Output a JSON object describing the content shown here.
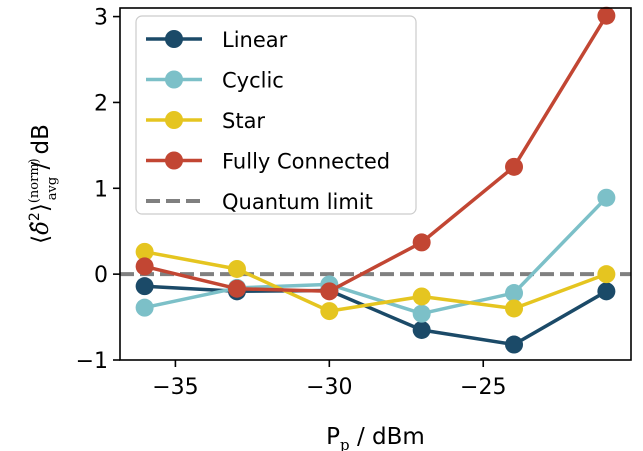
{
  "chart_data": {
    "type": "line",
    "xlabel": "P_p / dBm",
    "ylabel": "⟨δ̂²⟩avg(norm) / dB",
    "xlim": [
      -36.8,
      -20.2
    ],
    "ylim": [
      -1.0,
      3.1
    ],
    "xticks": [
      -35,
      -30,
      -25
    ],
    "xtick_labels": [
      "−35",
      "−30",
      "−25"
    ],
    "yticks": [
      -1,
      0,
      1,
      2,
      3
    ],
    "ytick_labels": [
      "−1",
      "0",
      "1",
      "2",
      "3"
    ],
    "grid": false,
    "legend_position": "top-left",
    "x": [
      -36,
      -33,
      -30,
      -27,
      -24,
      -21
    ],
    "series": [
      {
        "name": "Linear",
        "color": "#1b4a68",
        "values": [
          -0.14,
          -0.2,
          -0.19,
          -0.65,
          -0.82,
          -0.2
        ]
      },
      {
        "name": "Cyclic",
        "color": "#7cc0c8",
        "values": [
          -0.39,
          -0.16,
          -0.12,
          -0.46,
          -0.22,
          0.89
        ]
      },
      {
        "name": "Star",
        "color": "#e5c520",
        "values": [
          0.26,
          0.06,
          -0.43,
          -0.26,
          -0.4,
          0.0
        ]
      },
      {
        "name": "Fully Connected",
        "color": "#c24633",
        "values": [
          0.09,
          -0.17,
          -0.2,
          0.37,
          1.25,
          3.01
        ]
      }
    ],
    "reference_line": {
      "name": "Quantum limit",
      "y": 0,
      "color": "#808080",
      "style": "dashed"
    }
  }
}
